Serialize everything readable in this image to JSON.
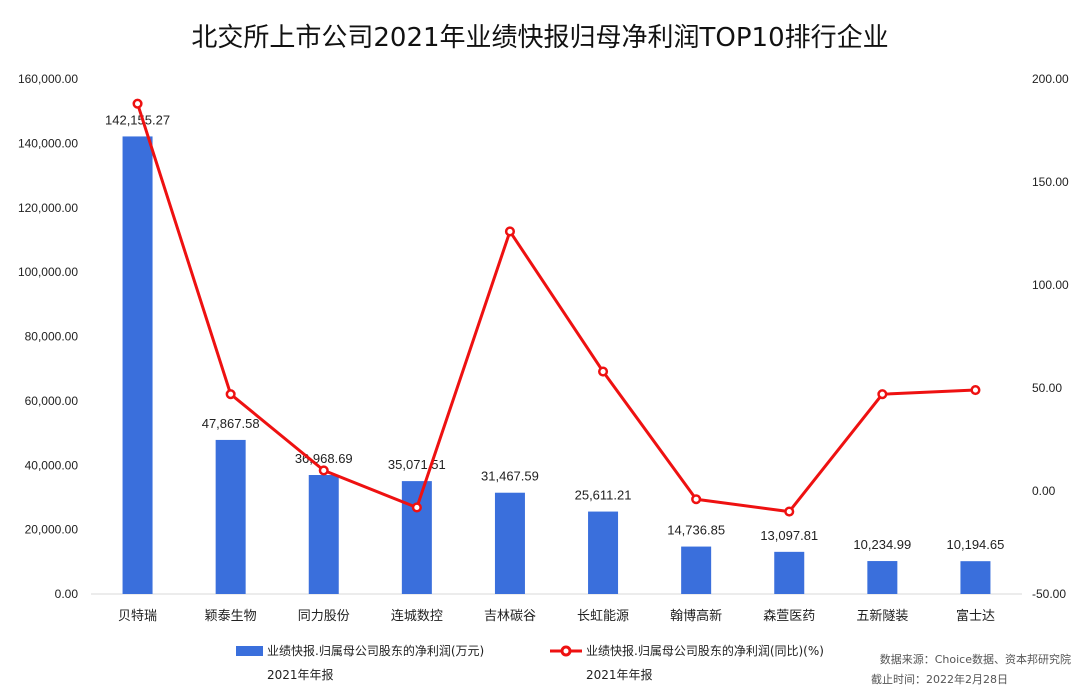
{
  "chart_data": {
    "type": "bar",
    "title": "北交所上市公司2021年业绩快报归母净利润TOP10排行企业",
    "categories": [
      "贝特瑞",
      "颖泰生物",
      "同力股份",
      "连城数控",
      "吉林碳谷",
      "长虹能源",
      "翰博高新",
      "森萱医药",
      "五新隧装",
      "富士达"
    ],
    "series": [
      {
        "name": "业绩快报.归属母公司股东的净利润(万元)",
        "sub_name": "2021年年报",
        "kind": "bar",
        "axis": "left",
        "color": "#3a6fdc",
        "values": [
          142155.27,
          47867.58,
          36968.69,
          35071.51,
          31467.59,
          25611.21,
          14736.85,
          13097.81,
          10234.99,
          10194.65
        ],
        "labels": [
          "142,155.27",
          "47,867.58",
          "36,968.69",
          "35,071.51",
          "31,467.59",
          "25,611.21",
          "14,736.85",
          "13,097.81",
          "10,234.99",
          "10,194.65"
        ]
      },
      {
        "name": "业绩快报.归属母公司股东的净利润(同比)(%)",
        "sub_name": "2021年年报",
        "kind": "line",
        "axis": "right",
        "color": "#ee1111",
        "values": [
          188,
          47,
          10,
          -8,
          126,
          58,
          -4,
          -10,
          47,
          49
        ]
      }
    ],
    "y_left": {
      "ylim": [
        0,
        160000
      ],
      "ticks": [
        "0.00",
        "20,000.00",
        "40,000.00",
        "60,000.00",
        "80,000.00",
        "100,000.00",
        "120,000.00",
        "140,000.00",
        "160,000.00"
      ]
    },
    "y_right": {
      "ylim": [
        -50,
        200
      ],
      "ticks": [
        "-50.00",
        "0.00",
        "50.00",
        "100.00",
        "150.00",
        "200.00"
      ]
    },
    "grid": false,
    "legend": "bottom"
  },
  "source": {
    "line1": "数据来源：Choice数据、资本邦研究院",
    "line2": "截止时间：2022年2月28日"
  }
}
